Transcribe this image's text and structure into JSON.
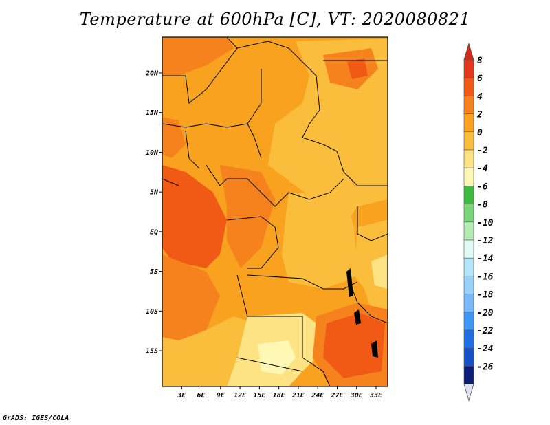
{
  "title": "Temperature at 600hPa [C], VT: 2020080821",
  "credit": "GrADS: IGES/COLA",
  "map": {
    "lat_range": [
      -19.5,
      24.5
    ],
    "lon_range": [
      0,
      29
    ],
    "lat_ticks": [
      {
        "value": 20,
        "label": "20N"
      },
      {
        "value": 15,
        "label": "15N"
      },
      {
        "value": 10,
        "label": "10N"
      },
      {
        "value": 5,
        "label": "5N"
      },
      {
        "value": 0,
        "label": "EQ"
      },
      {
        "value": -5,
        "label": "5S"
      },
      {
        "value": -10,
        "label": "10S"
      },
      {
        "value": -15,
        "label": "15S"
      }
    ],
    "lon_ticks": [
      {
        "value": 2.5,
        "label": "3E"
      },
      {
        "value": 5,
        "label": "6E"
      },
      {
        "value": 7.5,
        "label": "9E"
      },
      {
        "value": 10,
        "label": "12E"
      },
      {
        "value": 12.5,
        "label": "15E"
      },
      {
        "value": 15,
        "label": "18E"
      },
      {
        "value": 17.5,
        "label": "21E"
      },
      {
        "value": 20,
        "label": "24E"
      },
      {
        "value": 22.5,
        "label": "27E"
      },
      {
        "value": 25,
        "label": "30E"
      },
      {
        "value": 27.5,
        "label": "33E"
      }
    ]
  },
  "colorbar": {
    "levels": [
      {
        "label": "8",
        "color": "#e8361c"
      },
      {
        "label": "6",
        "color": "#f05a14"
      },
      {
        "label": "4",
        "color": "#f6821e"
      },
      {
        "label": "2",
        "color": "#f9a21f"
      },
      {
        "label": "0",
        "color": "#fbbe3c"
      },
      {
        "label": "-2",
        "color": "#fde383"
      },
      {
        "label": "-4",
        "color": "#fff8b4"
      },
      {
        "label": "-6",
        "color": "#3cbc3c"
      },
      {
        "label": "-8",
        "color": "#78d578"
      },
      {
        "label": "-10",
        "color": "#b4ebb4"
      },
      {
        "label": "-12",
        "color": "#e1faf5"
      },
      {
        "label": "-14",
        "color": "#b4e6fa"
      },
      {
        "label": "-16",
        "color": "#96d2fa"
      },
      {
        "label": "-18",
        "color": "#78b9fa"
      },
      {
        "label": "-20",
        "color": "#3c97f5"
      },
      {
        "label": "-22",
        "color": "#1e6ee6"
      },
      {
        "label": "-24",
        "color": "#1450c8"
      },
      {
        "label": "-26",
        "color": "#0a1e78"
      }
    ],
    "top_color": "#d2281e",
    "bottom_color": "#e1e1f5"
  }
}
